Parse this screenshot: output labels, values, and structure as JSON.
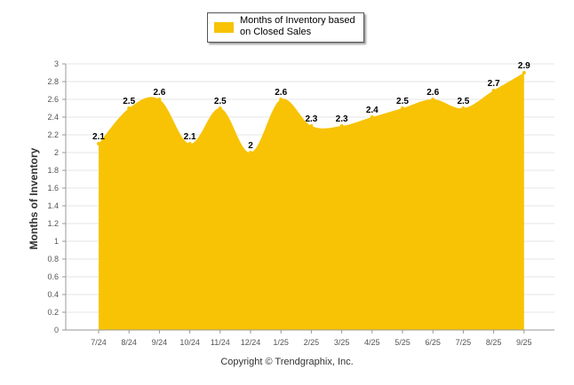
{
  "chart_data": {
    "type": "area",
    "title": "",
    "xlabel": "",
    "ylabel": "Months of Inventory",
    "categories": [
      "7/24",
      "8/24",
      "9/24",
      "10/24",
      "11/24",
      "12/24",
      "1/25",
      "2/25",
      "3/25",
      "4/25",
      "5/25",
      "6/25",
      "7/25",
      "8/25",
      "9/25"
    ],
    "series": [
      {
        "name": "Months of Inventory based on Closed Sales",
        "values": [
          2.1,
          2.5,
          2.6,
          2.1,
          2.5,
          2.0,
          2.6,
          2.3,
          2.3,
          2.4,
          2.5,
          2.6,
          2.5,
          2.7,
          2.9
        ],
        "labels": [
          "2.1",
          "2.5",
          "2.6",
          "2.1",
          "2.5",
          "2",
          "2.6",
          "2.3",
          "2.3",
          "2.4",
          "2.5",
          "2.6",
          "2.5",
          "2.7",
          "2.9"
        ],
        "color": "#f8c304"
      }
    ],
    "ylim": [
      0,
      3
    ],
    "yticks": [
      "0",
      "0.2",
      "0.4",
      "0.6",
      "0.8",
      "1",
      "1.2",
      "1.4",
      "1.6",
      "1.8",
      "2",
      "2.2",
      "2.4",
      "2.6",
      "2.8",
      "3"
    ],
    "grid": true,
    "legend_position": "top-center"
  },
  "footer": {
    "copyright": "Copyright © Trendgraphix, Inc."
  }
}
